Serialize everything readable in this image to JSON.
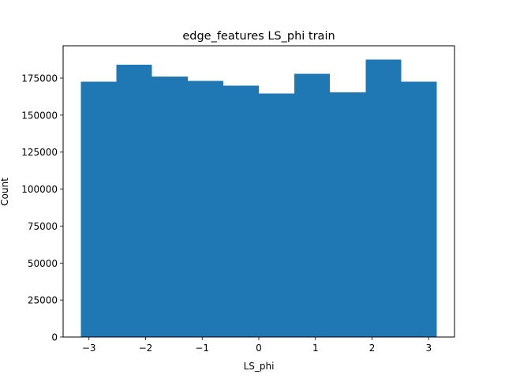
{
  "chart_data": {
    "type": "bar",
    "title": "edge_features LS_phi train",
    "xlabel": "LS_phi",
    "ylabel": "Count",
    "bar_color": "#1f77b4",
    "bins": [
      {
        "x0": -3.1416,
        "x1": -2.5133,
        "count": 172500
      },
      {
        "x0": -2.5133,
        "x1": -1.885,
        "count": 184000
      },
      {
        "x0": -1.885,
        "x1": -1.2566,
        "count": 176000
      },
      {
        "x0": -1.2566,
        "x1": -0.6283,
        "count": 173000
      },
      {
        "x0": -0.6283,
        "x1": 0.0,
        "count": 170000
      },
      {
        "x0": 0.0,
        "x1": 0.6283,
        "count": 164500
      },
      {
        "x0": 0.6283,
        "x1": 1.2566,
        "count": 178000
      },
      {
        "x0": 1.2566,
        "x1": 1.885,
        "count": 165500
      },
      {
        "x0": 1.885,
        "x1": 2.5133,
        "count": 187500
      },
      {
        "x0": 2.5133,
        "x1": 3.1416,
        "count": 172500
      }
    ],
    "xlim": [
      -3.4558,
      3.4558
    ],
    "ylim": [
      0,
      196875
    ],
    "xticks": [
      {
        "value": -3,
        "label": "−3"
      },
      {
        "value": -2,
        "label": "−2"
      },
      {
        "value": -1,
        "label": "−1"
      },
      {
        "value": 0,
        "label": "0"
      },
      {
        "value": 1,
        "label": "1"
      },
      {
        "value": 2,
        "label": "2"
      },
      {
        "value": 3,
        "label": "3"
      }
    ],
    "yticks": [
      {
        "value": 0,
        "label": "0"
      },
      {
        "value": 25000,
        "label": "25000"
      },
      {
        "value": 50000,
        "label": "50000"
      },
      {
        "value": 75000,
        "label": "75000"
      },
      {
        "value": 100000,
        "label": "100000"
      },
      {
        "value": 125000,
        "label": "125000"
      },
      {
        "value": 150000,
        "label": "150000"
      },
      {
        "value": 175000,
        "label": "175000"
      }
    ],
    "grid": false,
    "legend": "none"
  }
}
